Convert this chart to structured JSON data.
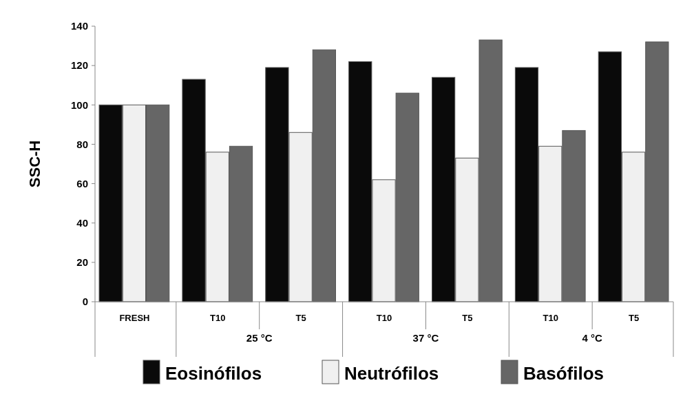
{
  "chart_data": {
    "type": "bar",
    "ylabel": "SSC-H",
    "categories": [
      "FRESH",
      "T10",
      "T5",
      "T10",
      "T5",
      "T10",
      "T5"
    ],
    "series": [
      {
        "name": "Eosinófilos",
        "color": "#0a0a0a",
        "values": [
          100,
          113,
          119,
          122,
          114,
          119,
          127
        ]
      },
      {
        "name": "Neutrófilos",
        "color": "#f0f0f0",
        "values": [
          100,
          76,
          86,
          62,
          73,
          79,
          76
        ]
      },
      {
        "name": "Basófilos",
        "color": "#666666",
        "values": [
          100,
          79,
          128,
          106,
          133,
          87,
          132
        ]
      }
    ],
    "annotations": [
      "25 °C",
      "37 °C",
      "4 °C"
    ],
    "ylim": [
      0,
      140
    ],
    "yticks": [
      0,
      20,
      40,
      60,
      80,
      100,
      120,
      140
    ],
    "grid": false,
    "legend": "bottom"
  }
}
